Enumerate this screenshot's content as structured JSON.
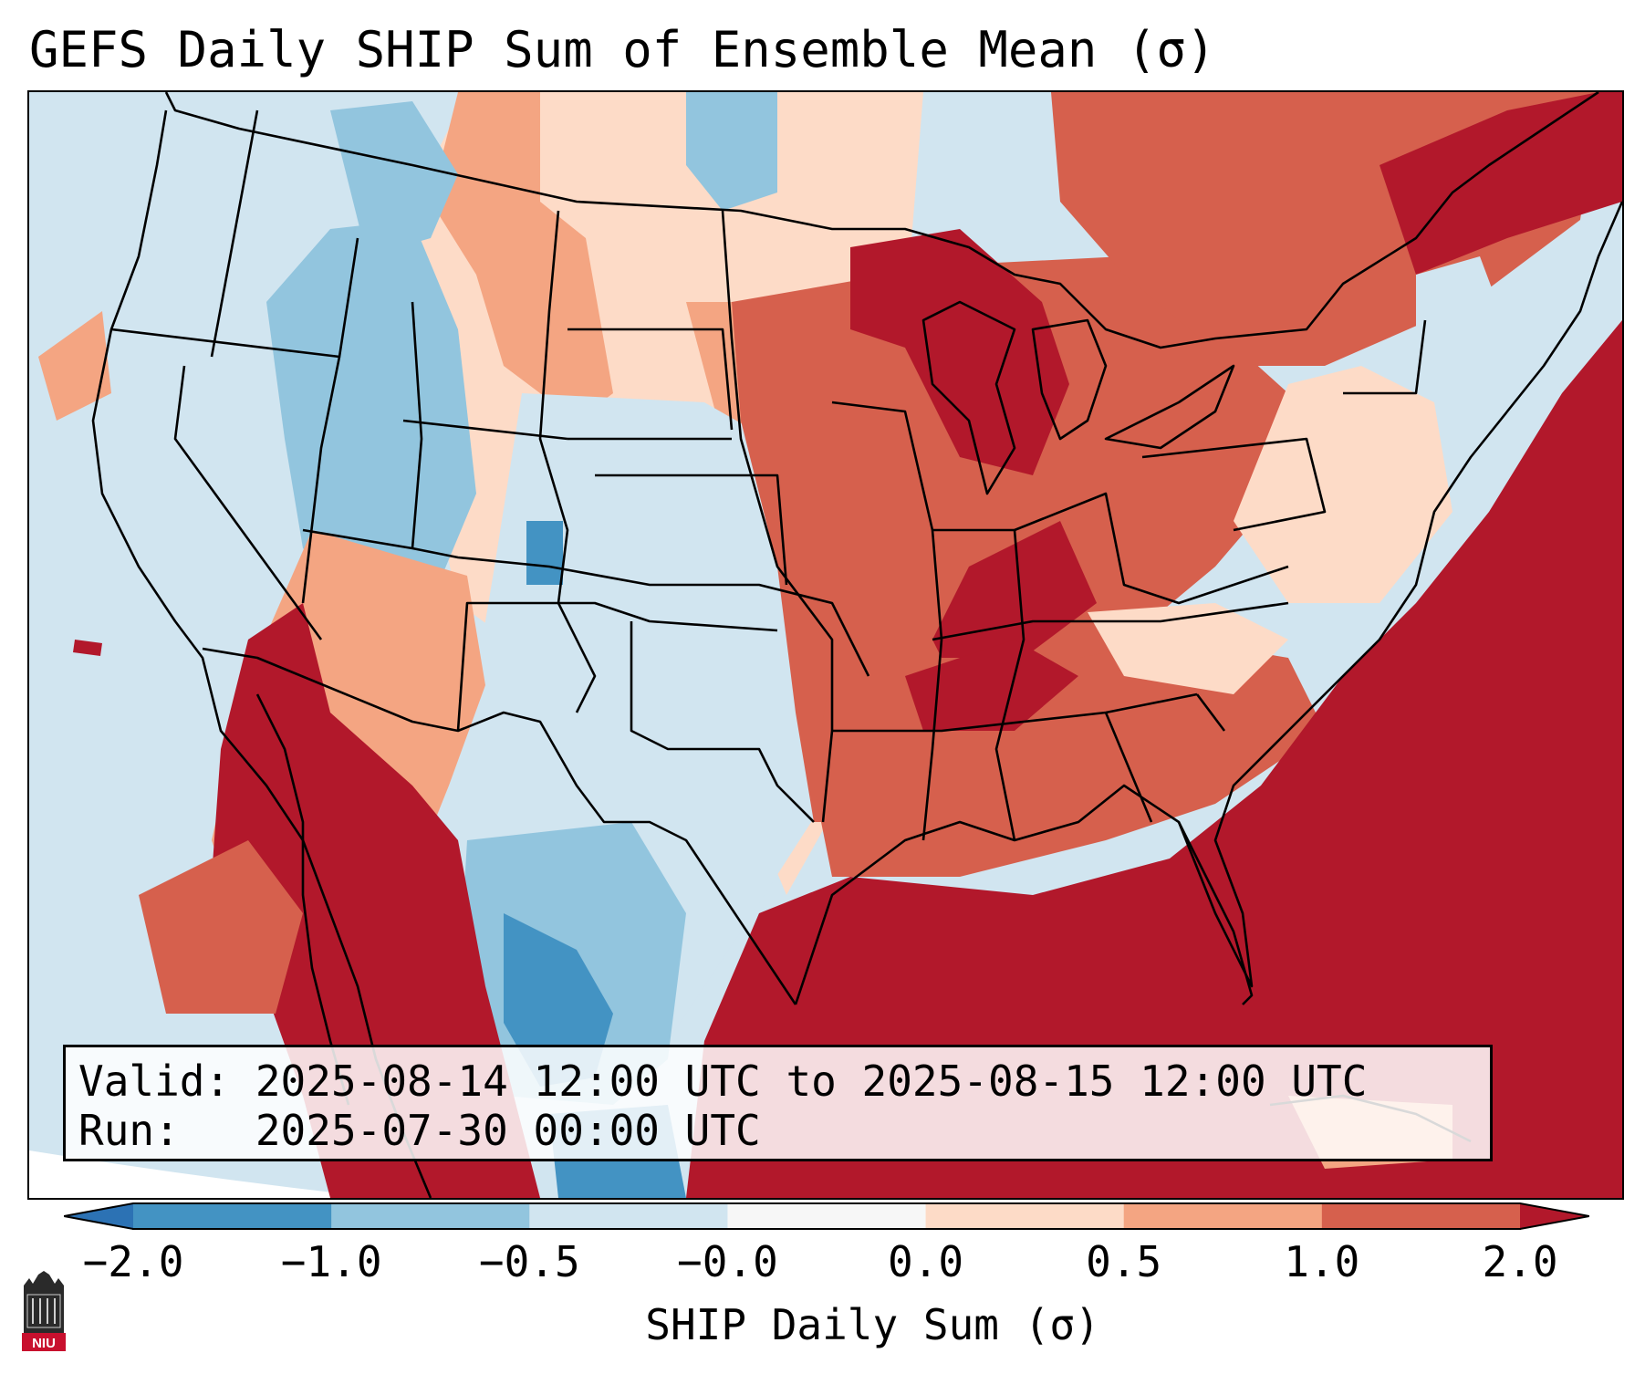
{
  "title": "GEFS Daily SHIP Sum of Ensemble Mean (σ)",
  "info": {
    "valid_line": "Valid: 2025-08-14 12:00 UTC to 2025-08-15 12:00 UTC",
    "run_line": "Run:   2025-07-30 00:00 UTC"
  },
  "colorbar": {
    "label": "SHIP Daily Sum (σ)",
    "tick_labels": [
      "−2.0",
      "−1.0",
      "−0.5",
      "−0.0",
      "0.0",
      "0.5",
      "1.0",
      "2.0"
    ],
    "bins": [
      {
        "range": "< -2.0",
        "color": "#2c72b4"
      },
      {
        "range": "-2.0 to -1.0",
        "color": "#4393c3"
      },
      {
        "range": "-1.0 to -0.5",
        "color": "#92c5de"
      },
      {
        "range": "-0.5 to -0.0",
        "color": "#d1e5f0"
      },
      {
        "range": "-0.0 to 0.0",
        "color": "#f7f7f7"
      },
      {
        "range": "0.0 to 0.5",
        "color": "#fddbc7"
      },
      {
        "range": "0.5 to 1.0",
        "color": "#f4a582"
      },
      {
        "range": "1.0 to 2.0",
        "color": "#d6604d"
      },
      {
        "range": "> 2.0",
        "color": "#b2182b"
      }
    ]
  },
  "map": {
    "projection": "Lambert Conformal, contiguous United States",
    "features": [
      "state borders",
      "coastlines",
      "international borders"
    ],
    "regions": [
      {
        "region": "Pacific Ocean offshore",
        "level": "-0.5 to -0.0"
      },
      {
        "region": "Pacific Northwest / Idaho / Nevada / Utah",
        "level": "-1.0 to -0.0"
      },
      {
        "region": "Colorado Rockies",
        "level": "-2.0 to -0.5"
      },
      {
        "region": "Northern Plains (Dakotas, Nebraska)",
        "level": "0.0 to 1.0"
      },
      {
        "region": "Kansas / Oklahoma / west Texas",
        "level": "-0.5 to 0.5"
      },
      {
        "region": "South Texas / northeast Mexico",
        "level": "-2.0 to -0.5"
      },
      {
        "region": "Arizona / Baja / northwest Mexico",
        "level": "1.0 to > 2.0"
      },
      {
        "region": "Upper Midwest / Great Lakes",
        "level": "1.0 to > 2.0"
      },
      {
        "region": "Ohio and Tennessee Valleys / Southeast",
        "level": "1.0 to > 2.0"
      },
      {
        "region": "Northeast / New England",
        "level": "0.0 to 1.0"
      },
      {
        "region": "Gulf of Mexico / Atlantic / Florida",
        "level": "> 2.0"
      }
    ]
  },
  "logo": {
    "text": "NIU"
  }
}
